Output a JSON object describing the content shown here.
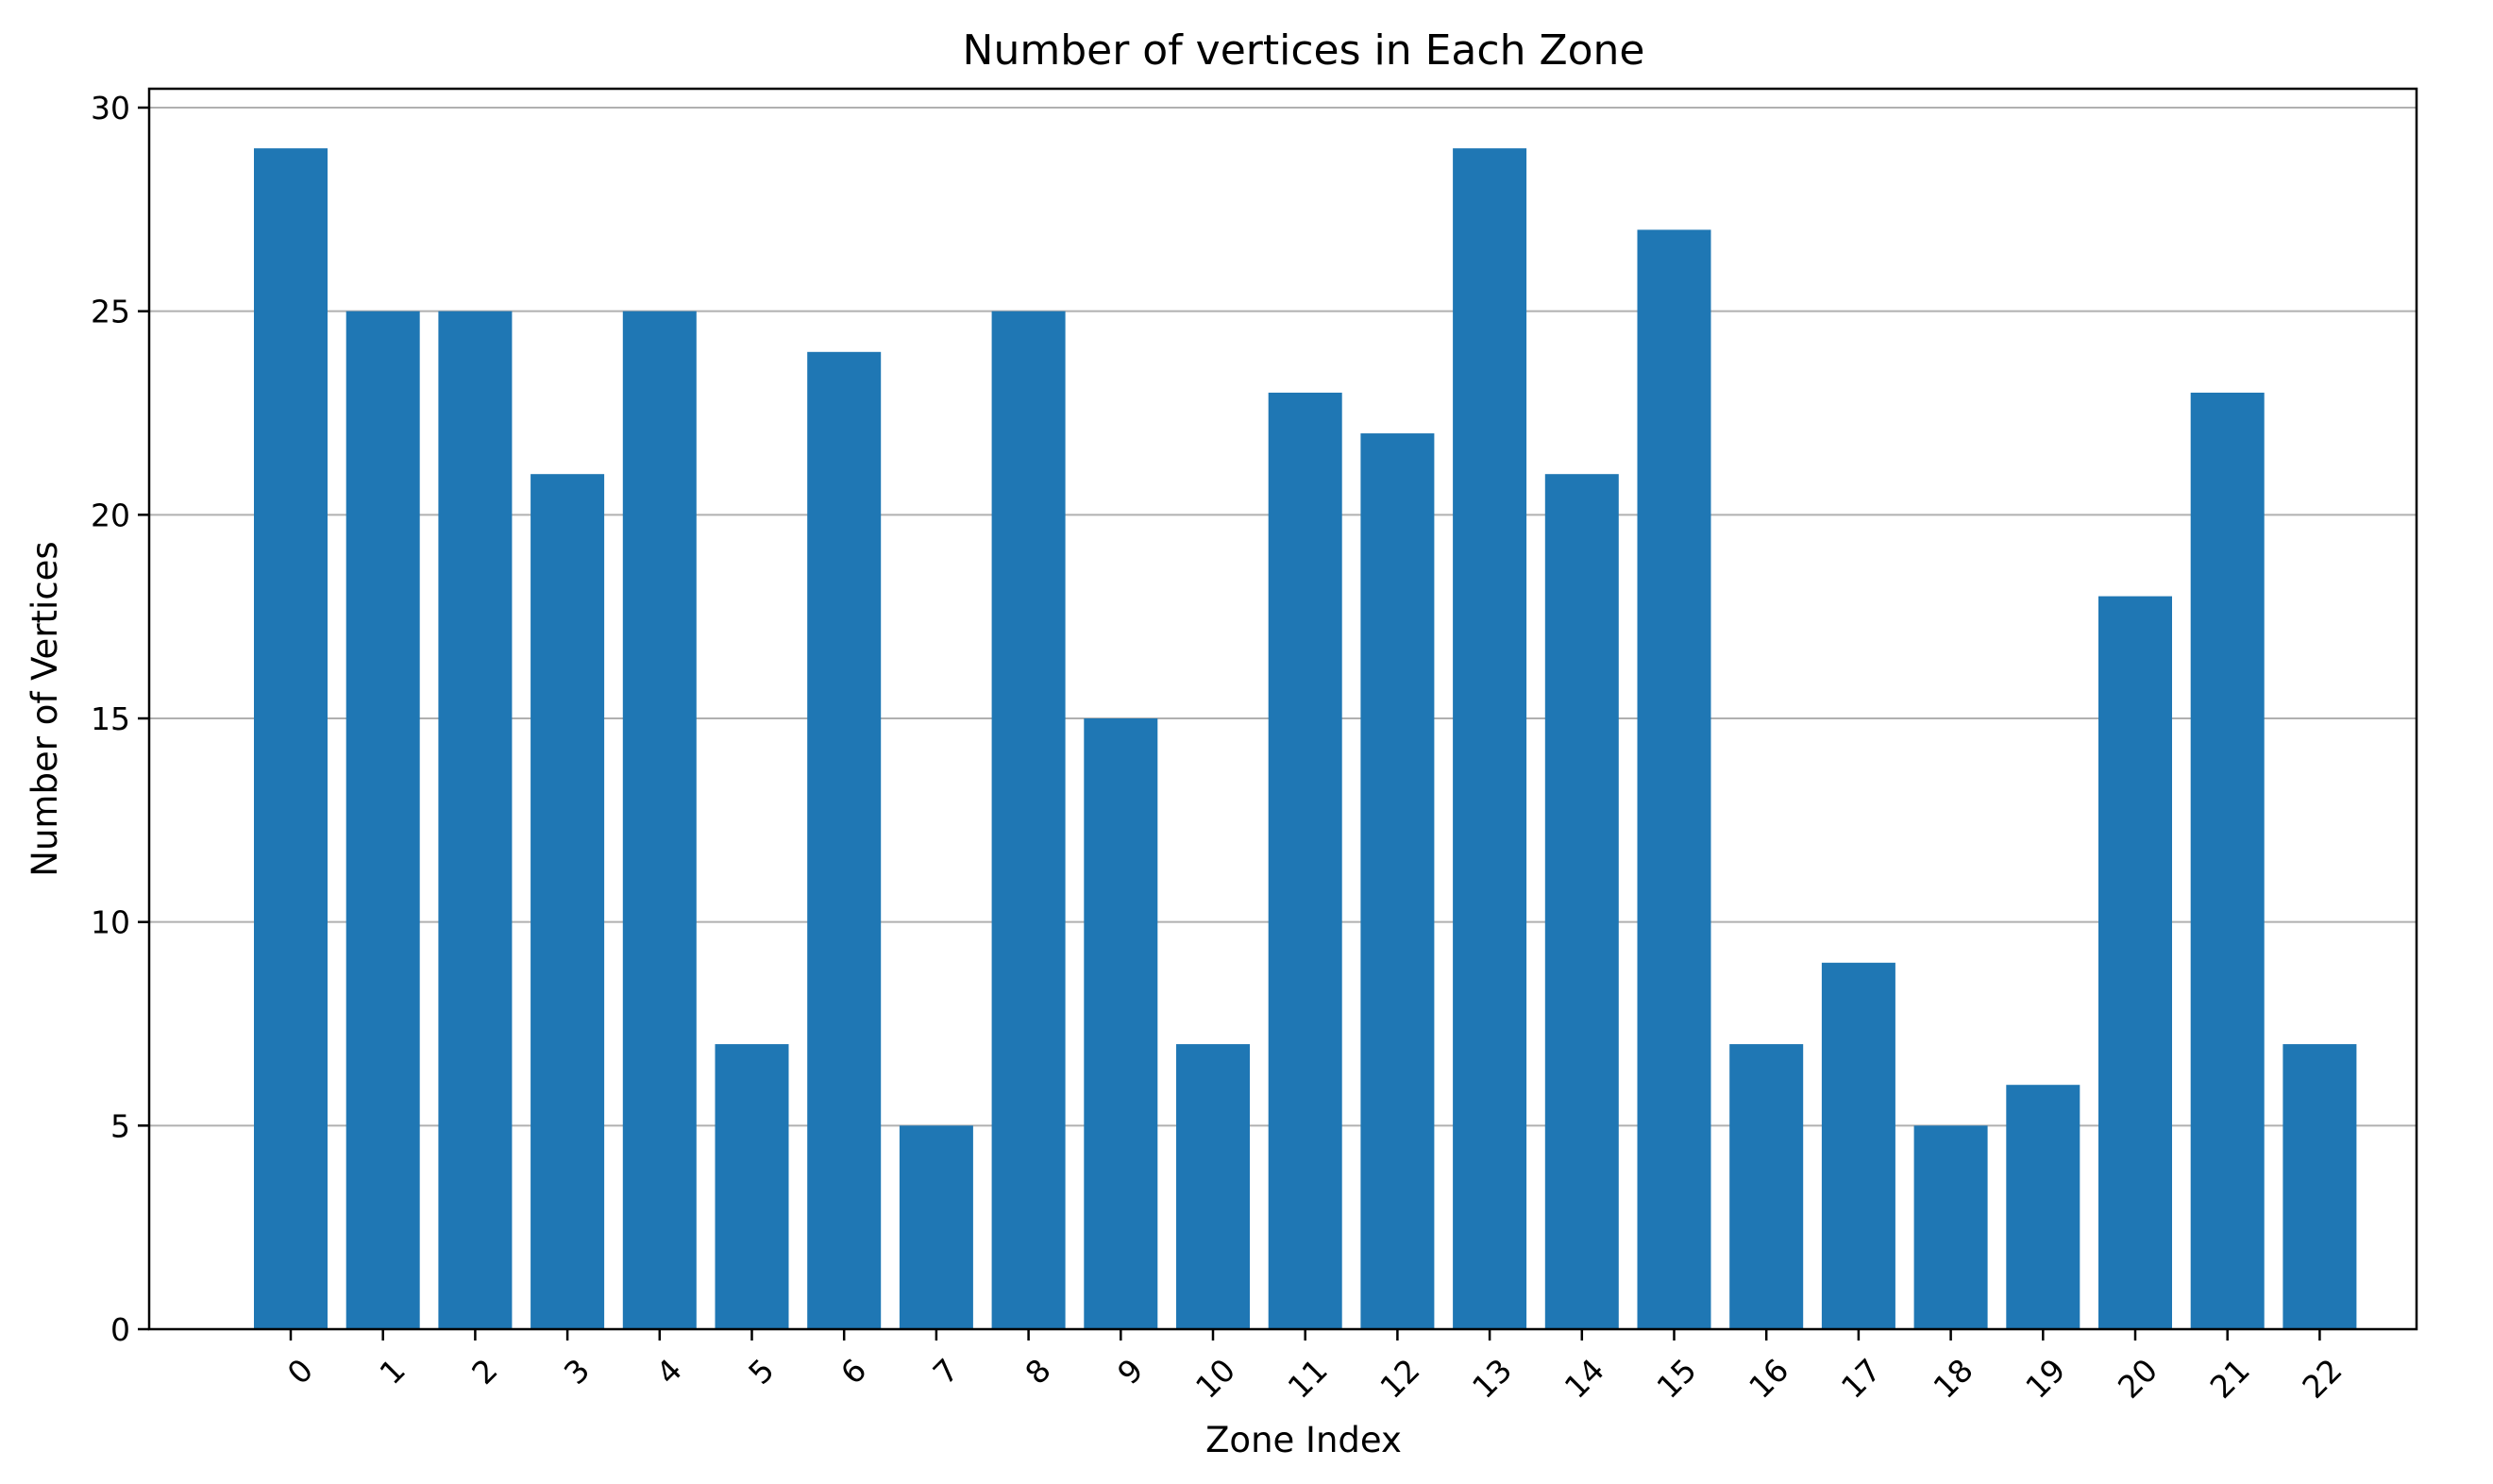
{
  "chart_data": {
    "type": "bar",
    "title": "Number of vertices in Each Zone",
    "xlabel": "Zone Index",
    "ylabel": "Number of Vertices",
    "categories": [
      "0",
      "1",
      "2",
      "3",
      "4",
      "5",
      "6",
      "7",
      "8",
      "9",
      "10",
      "11",
      "12",
      "13",
      "14",
      "15",
      "16",
      "17",
      "18",
      "19",
      "20",
      "21",
      "22"
    ],
    "values": [
      29,
      25,
      25,
      21,
      25,
      7,
      24,
      5,
      25,
      15,
      7,
      23,
      22,
      29,
      21,
      27,
      7,
      9,
      5,
      6,
      18,
      23,
      7
    ],
    "ylim": [
      0,
      30
    ],
    "yticks": [
      "0",
      "5",
      "10",
      "15",
      "20",
      "25",
      "30"
    ],
    "grid": "y-axis major gridlines",
    "legend": "none",
    "bar_color": "#1f77b4",
    "grid_color": "#b0b0b0"
  }
}
